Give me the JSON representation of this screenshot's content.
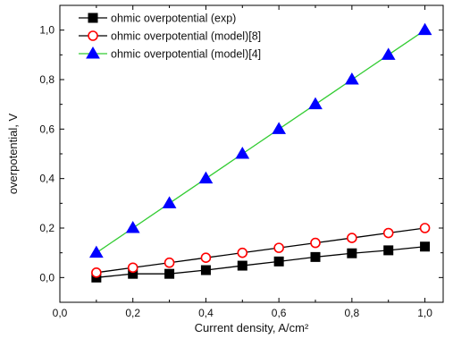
{
  "chart_data": {
    "type": "line",
    "xlabel": "Current density, A/cm²",
    "ylabel": "overpotential, V",
    "xlim": [
      0.0,
      1.05
    ],
    "ylim": [
      -0.1,
      1.1
    ],
    "x_ticks": [
      0.0,
      0.2,
      0.4,
      0.6,
      0.8,
      1.0
    ],
    "x_tick_labels": [
      "0,0",
      "0,2",
      "0,4",
      "0,6",
      "0,8",
      "1,0"
    ],
    "y_ticks": [
      0.0,
      0.2,
      0.4,
      0.6,
      0.8,
      1.0
    ],
    "y_tick_labels": [
      "0,0",
      "0,2",
      "0,4",
      "0,6",
      "0,8",
      "1,0"
    ],
    "grid": false,
    "legend_position": "top-left",
    "x": [
      0.1,
      0.2,
      0.3,
      0.4,
      0.5,
      0.6,
      0.7,
      0.8,
      0.9,
      1.0
    ],
    "series": [
      {
        "name": "ohmic overpotential (exp)",
        "marker": "square",
        "line_color": "#000000",
        "marker_fill": "#000000",
        "marker_stroke": "#000000",
        "values": [
          0.0,
          0.015,
          0.015,
          0.03,
          0.048,
          0.065,
          0.083,
          0.098,
          0.11,
          0.125
        ]
      },
      {
        "name": "ohmic overpotential (model)[8]",
        "marker": "open-circle",
        "line_color": "#000000",
        "marker_fill": "#ffffff",
        "marker_stroke": "#ff0000",
        "values": [
          0.02,
          0.04,
          0.06,
          0.08,
          0.1,
          0.12,
          0.14,
          0.16,
          0.18,
          0.2
        ]
      },
      {
        "name": "ohmic overpotential (model)[4]",
        "marker": "triangle",
        "line_color": "#33cc33",
        "marker_fill": "#0000ff",
        "marker_stroke": "#0000ff",
        "values": [
          0.1,
          0.2,
          0.3,
          0.4,
          0.5,
          0.6,
          0.7,
          0.8,
          0.9,
          1.0
        ]
      }
    ]
  }
}
